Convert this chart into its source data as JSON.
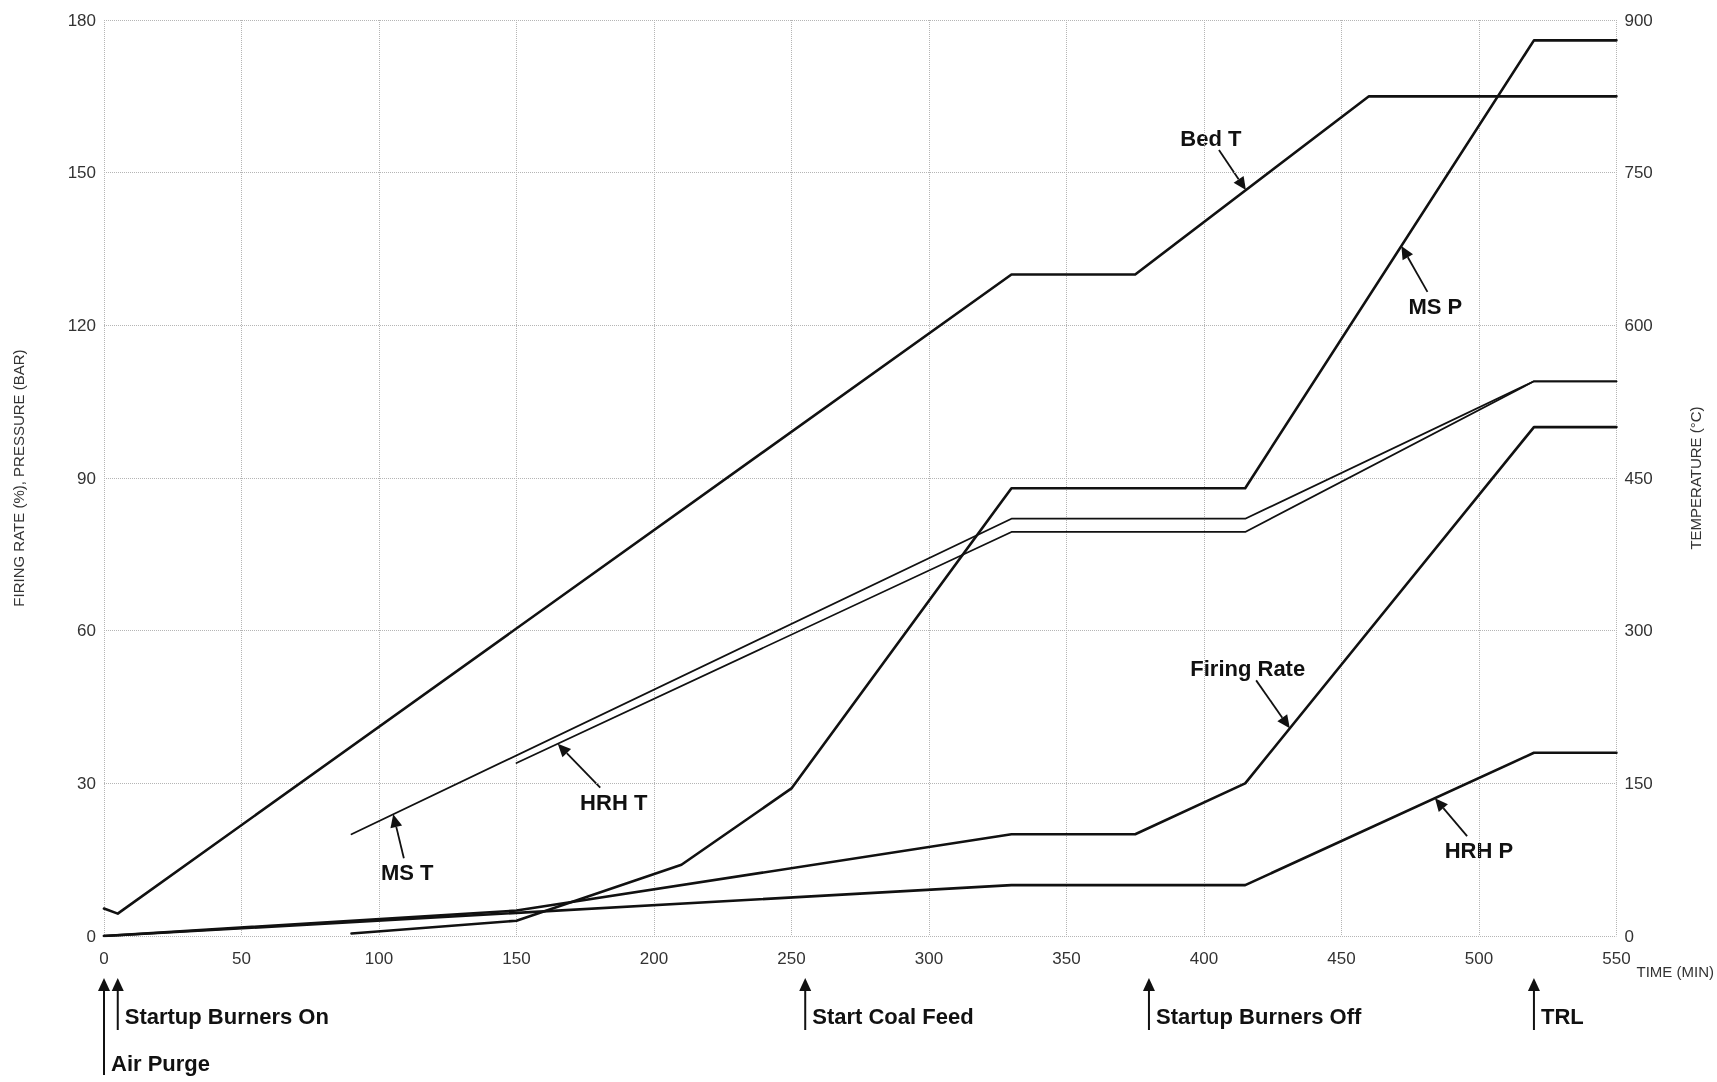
{
  "chart_data": {
    "type": "line",
    "xlabel": "TIME (MIN)",
    "ylabel": "FIRING RATE (%), PRESSURE (BAR)",
    "y2label": "TEMPERATURE (°C)",
    "xlim": [
      0,
      550
    ],
    "xticks": [
      0,
      50,
      100,
      150,
      200,
      250,
      300,
      350,
      400,
      450,
      500,
      550
    ],
    "ylim": [
      0,
      180
    ],
    "yticks": [
      0,
      30,
      60,
      90,
      120,
      150,
      180
    ],
    "y2lim": [
      0,
      900
    ],
    "y2ticks": [
      0,
      150,
      300,
      450,
      600,
      750,
      900
    ],
    "grid": true,
    "legend": "right",
    "marker": "none",
    "line_style": "solid",
    "series": [
      {
        "name": "Bed T",
        "axis": "y2",
        "color": "#111111",
        "x": [
          0,
          5,
          330,
          375,
          460,
          550
        ],
        "values": [
          27,
          22,
          650,
          650,
          825,
          825
        ]
      },
      {
        "name": "MS T",
        "axis": "y2",
        "color": "#111111",
        "x": [
          90,
          330,
          415,
          520,
          550
        ],
        "values": [
          100,
          410,
          410,
          545,
          545
        ]
      },
      {
        "name": "HRH T",
        "axis": "y2",
        "color": "#111111",
        "x": [
          150,
          330,
          415,
          520,
          550
        ],
        "values": [
          170,
          397,
          397,
          545,
          545
        ]
      },
      {
        "name": "MS P",
        "color": "#111111",
        "x": [
          90,
          150,
          210,
          250,
          330,
          415,
          520,
          550
        ],
        "values": [
          0.5,
          3,
          14,
          29,
          88,
          88,
          176,
          176
        ]
      },
      {
        "name": "Firing Rate",
        "color": "#111111",
        "x": [
          0,
          150,
          330,
          375,
          415,
          520,
          550
        ],
        "values": [
          0,
          5,
          20,
          20,
          30,
          100,
          100
        ]
      },
      {
        "name": "HRH P",
        "color": "#111111",
        "x": [
          0,
          330,
          415,
          520,
          550
        ],
        "values": [
          0,
          10,
          10,
          36,
          36
        ]
      }
    ],
    "ref_lines": [
      {
        "axis": "x",
        "value": 0,
        "label": "Air Purge"
      },
      {
        "axis": "x",
        "value": 5,
        "label": "Startup Burners On"
      },
      {
        "axis": "x",
        "value": 255,
        "label": "Start Coal Feed"
      },
      {
        "axis": "x",
        "value": 380,
        "label": "Startup Burners Off"
      },
      {
        "axis": "x",
        "value": 520,
        "label": "TRL"
      }
    ]
  }
}
